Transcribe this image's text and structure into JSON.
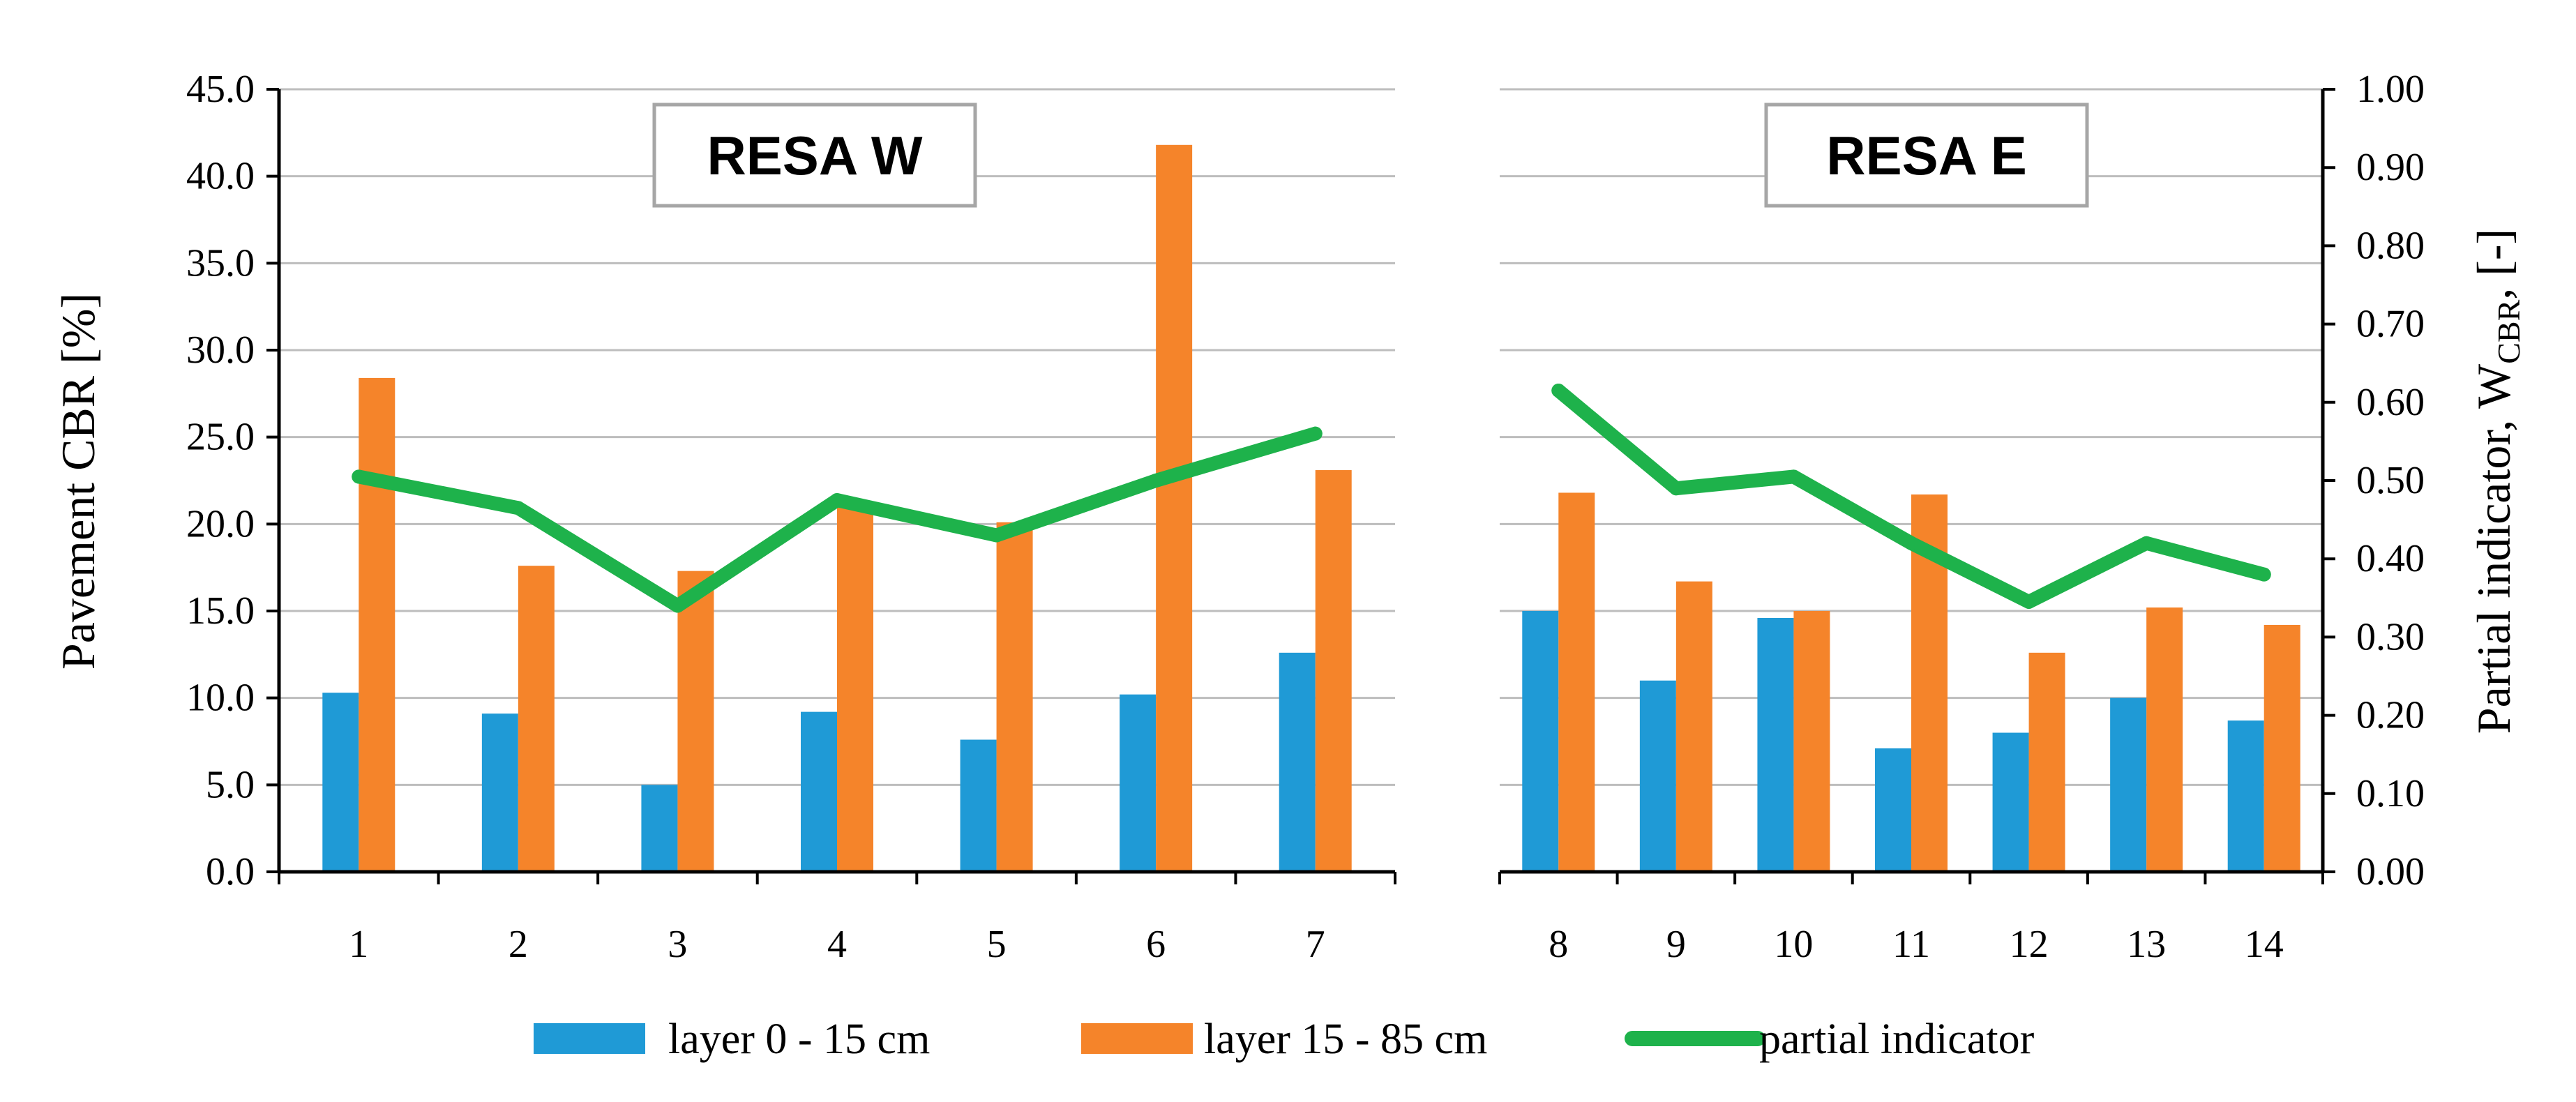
{
  "chart_data": {
    "type": "bar",
    "ylabel": "Pavement CBR [%]",
    "y2label_main": "Partial indicator, W",
    "y2label_sub": "CBR",
    "y2label_tail": ", [-]",
    "ylim": [
      0,
      45
    ],
    "y2lim": [
      0,
      1
    ],
    "yticks": [
      "0.0",
      "5.0",
      "10.0",
      "15.0",
      "20.0",
      "25.0",
      "30.0",
      "35.0",
      "40.0",
      "45.0"
    ],
    "y2ticks": [
      "0.00",
      "0.10",
      "0.20",
      "0.30",
      "0.40",
      "0.50",
      "0.60",
      "0.70",
      "0.80",
      "0.90",
      "1.00"
    ],
    "grid": true,
    "legend_position": "bottom",
    "colors": {
      "layer_top": "#1f9ad6",
      "layer_bottom": "#f5842a",
      "indicator": "#1eb24b"
    },
    "legend": [
      "layer 0 - 15 cm",
      "layer 15 - 85 cm",
      "partial indicator"
    ],
    "panels": [
      {
        "title": "RESA W",
        "categories": [
          "1",
          "2",
          "3",
          "4",
          "5",
          "6",
          "7"
        ],
        "series": [
          {
            "name": "layer 0 - 15 cm",
            "axis": "left",
            "values": [
              10.3,
              9.1,
              5.0,
              9.2,
              7.6,
              10.2,
              12.6
            ]
          },
          {
            "name": "layer 15 - 85 cm",
            "axis": "left",
            "values": [
              28.4,
              17.6,
              17.3,
              21.0,
              20.1,
              41.8,
              23.1
            ]
          },
          {
            "name": "partial indicator",
            "axis": "right",
            "values": [
              0.505,
              0.465,
              0.34,
              0.475,
              0.43,
              0.5,
              0.56
            ]
          }
        ]
      },
      {
        "title": "RESA E",
        "categories": [
          "8",
          "9",
          "10",
          "11",
          "12",
          "13",
          "14"
        ],
        "series": [
          {
            "name": "layer 0 - 15 cm",
            "axis": "left",
            "values": [
              15.0,
              11.0,
              14.6,
              7.1,
              8.0,
              10.0,
              8.7
            ]
          },
          {
            "name": "layer 15 - 85 cm",
            "axis": "left",
            "values": [
              21.8,
              16.7,
              15.0,
              21.7,
              12.6,
              15.2,
              14.2
            ]
          },
          {
            "name": "partial indicator",
            "axis": "right",
            "values": [
              0.615,
              0.49,
              0.505,
              0.42,
              0.345,
              0.42,
              0.38
            ]
          }
        ]
      }
    ]
  }
}
